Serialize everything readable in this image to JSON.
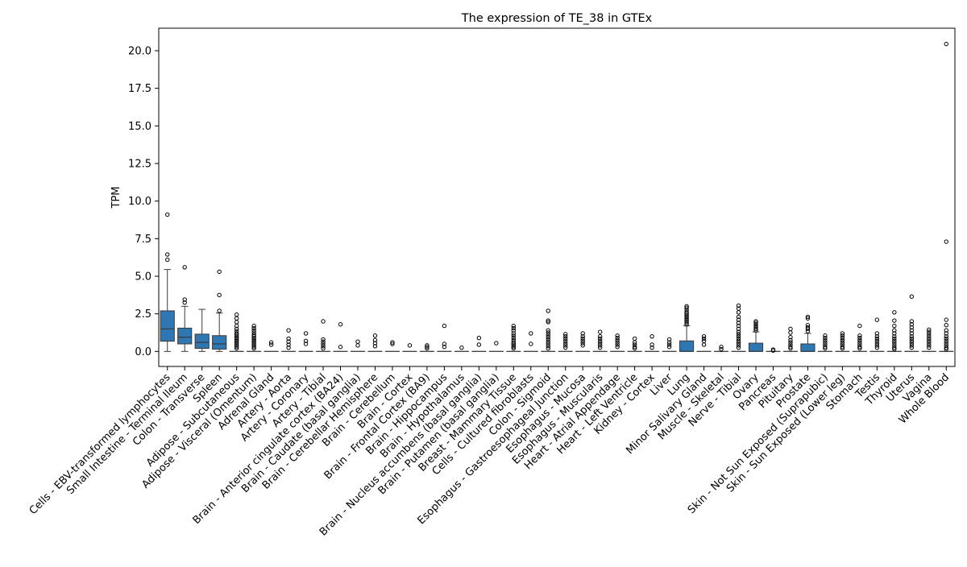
{
  "chart_data": {
    "type": "box",
    "title": "The expression of TE_38 in GTEx",
    "xlabel": "",
    "ylabel": "TPM",
    "ylim": [
      -1.0,
      21.5
    ],
    "yticks": [
      0.0,
      2.5,
      5.0,
      7.5,
      10.0,
      12.5,
      15.0,
      17.5,
      20.0
    ],
    "ytick_labels": [
      "0.0",
      "2.5",
      "5.0",
      "7.5",
      "10.0",
      "12.5",
      "15.0",
      "17.5",
      "20.0"
    ],
    "grid": false,
    "legend": "none",
    "box_color": "#2e77b3",
    "edge_color": "#3a3a3a",
    "categories": [
      {
        "name": "Cells - EBV-transformed lymphocytes",
        "q1": 0.68,
        "median": 1.5,
        "q3": 2.7,
        "wlo": 0.0,
        "whi": 5.45,
        "outliers": [
          9.1,
          6.45,
          6.1
        ]
      },
      {
        "name": "Small Intestine - Terminal Ileum",
        "q1": 0.5,
        "median": 0.95,
        "q3": 1.55,
        "wlo": 0.0,
        "whi": 3.0,
        "outliers": [
          5.6,
          3.45,
          3.25
        ]
      },
      {
        "name": "Colon - Transverse",
        "q1": 0.2,
        "median": 0.6,
        "q3": 1.15,
        "wlo": 0.0,
        "whi": 2.8,
        "outliers": []
      },
      {
        "name": "Spleen",
        "q1": 0.15,
        "median": 0.5,
        "q3": 1.05,
        "wlo": 0.0,
        "whi": 2.55,
        "outliers": [
          5.3,
          3.75,
          2.7
        ]
      },
      {
        "name": "Adipose - Subcutaneous",
        "q1": 0.0,
        "median": 0.0,
        "q3": 0.0,
        "wlo": 0.0,
        "whi": 0.0,
        "outliers": [
          2.45,
          2.2,
          1.95,
          1.7,
          1.5,
          1.35,
          1.2,
          1.1,
          1.0,
          0.9,
          0.8,
          0.7,
          0.6,
          0.5,
          0.4,
          0.3,
          0.2
        ]
      },
      {
        "name": "Adipose - Visceral (Omentum)",
        "q1": 0.0,
        "median": 0.0,
        "q3": 0.0,
        "wlo": 0.0,
        "whi": 0.0,
        "outliers": [
          1.7,
          1.55,
          1.4,
          1.25,
          1.1,
          1.0,
          0.9,
          0.8,
          0.7,
          0.6,
          0.5,
          0.4,
          0.3,
          0.2
        ]
      },
      {
        "name": "Adrenal Gland",
        "q1": 0.0,
        "median": 0.0,
        "q3": 0.0,
        "wlo": 0.0,
        "whi": 0.0,
        "outliers": [
          0.6,
          0.45
        ]
      },
      {
        "name": "Artery - Aorta",
        "q1": 0.0,
        "median": 0.0,
        "q3": 0.0,
        "wlo": 0.0,
        "whi": 0.0,
        "outliers": [
          1.4,
          0.85,
          0.65,
          0.45,
          0.25
        ]
      },
      {
        "name": "Artery - Coronary",
        "q1": 0.0,
        "median": 0.0,
        "q3": 0.0,
        "wlo": 0.0,
        "whi": 0.0,
        "outliers": [
          1.2,
          0.7,
          0.5
        ]
      },
      {
        "name": "Artery - Tibial",
        "q1": 0.0,
        "median": 0.0,
        "q3": 0.0,
        "wlo": 0.0,
        "whi": 0.0,
        "outliers": [
          2.0,
          0.8,
          0.65,
          0.5,
          0.35,
          0.2
        ]
      },
      {
        "name": "Brain - Anterior cingulate cortex (BA24)",
        "q1": 0.0,
        "median": 0.0,
        "q3": 0.0,
        "wlo": 0.0,
        "whi": 0.0,
        "outliers": [
          1.8,
          0.3
        ]
      },
      {
        "name": "Brain - Caudate (basal ganglia)",
        "q1": 0.0,
        "median": 0.0,
        "q3": 0.0,
        "wlo": 0.0,
        "whi": 0.0,
        "outliers": [
          0.65,
          0.4
        ]
      },
      {
        "name": "Brain - Cerebellar Hemisphere",
        "q1": 0.0,
        "median": 0.0,
        "q3": 0.0,
        "wlo": 0.0,
        "whi": 0.0,
        "outliers": [
          1.05,
          0.75,
          0.55,
          0.35
        ]
      },
      {
        "name": "Brain - Cerebellum",
        "q1": 0.0,
        "median": 0.0,
        "q3": 0.0,
        "wlo": 0.0,
        "whi": 0.0,
        "outliers": [
          0.6,
          0.5
        ]
      },
      {
        "name": "Brain - Cortex",
        "q1": 0.0,
        "median": 0.0,
        "q3": 0.0,
        "wlo": 0.0,
        "whi": 0.0,
        "outliers": [
          0.4
        ]
      },
      {
        "name": "Brain - Frontal Cortex (BA9)",
        "q1": 0.0,
        "median": 0.0,
        "q3": 0.0,
        "wlo": 0.0,
        "whi": 0.0,
        "outliers": [
          0.4,
          0.3,
          0.2
        ]
      },
      {
        "name": "Brain - Hippocampus",
        "q1": 0.0,
        "median": 0.0,
        "q3": 0.0,
        "wlo": 0.0,
        "whi": 0.0,
        "outliers": [
          1.7,
          0.5,
          0.3
        ]
      },
      {
        "name": "Brain - Hypothalamus",
        "q1": 0.0,
        "median": 0.0,
        "q3": 0.0,
        "wlo": 0.0,
        "whi": 0.0,
        "outliers": [
          0.25
        ]
      },
      {
        "name": "Brain - Nucleus accumbens (basal ganglia)",
        "q1": 0.0,
        "median": 0.0,
        "q3": 0.0,
        "wlo": 0.0,
        "whi": 0.0,
        "outliers": [
          0.9,
          0.45
        ]
      },
      {
        "name": "Brain - Putamen (basal ganglia)",
        "q1": 0.0,
        "median": 0.0,
        "q3": 0.0,
        "wlo": 0.0,
        "whi": 0.0,
        "outliers": [
          0.55
        ]
      },
      {
        "name": "Breast - Mammary Tissue",
        "q1": 0.0,
        "median": 0.0,
        "q3": 0.0,
        "wlo": 0.0,
        "whi": 0.0,
        "outliers": [
          1.7,
          1.55,
          1.4,
          1.2,
          1.05,
          0.9,
          0.75,
          0.6,
          0.5,
          0.4,
          0.3,
          0.2
        ]
      },
      {
        "name": "Cells - Cultured fibroblasts",
        "q1": 0.0,
        "median": 0.0,
        "q3": 0.0,
        "wlo": 0.0,
        "whi": 0.0,
        "outliers": [
          1.2,
          0.5
        ]
      },
      {
        "name": "Colon - Sigmoid",
        "q1": 0.0,
        "median": 0.0,
        "q3": 0.0,
        "wlo": 0.0,
        "whi": 0.0,
        "outliers": [
          2.7,
          2.05,
          1.95,
          1.4,
          1.25,
          1.1,
          0.95,
          0.8,
          0.65,
          0.5,
          0.35,
          0.2
        ]
      },
      {
        "name": "Esophagus - Gastroesophageal Junction",
        "q1": 0.0,
        "median": 0.0,
        "q3": 0.0,
        "wlo": 0.0,
        "whi": 0.0,
        "outliers": [
          1.15,
          1.0,
          0.85,
          0.7,
          0.55,
          0.4,
          0.25
        ]
      },
      {
        "name": "Esophagus - Mucosa",
        "q1": 0.0,
        "median": 0.0,
        "q3": 0.0,
        "wlo": 0.0,
        "whi": 0.0,
        "outliers": [
          1.2,
          1.0,
          0.85,
          0.7,
          0.55,
          0.4
        ]
      },
      {
        "name": "Esophagus - Muscularis",
        "q1": 0.0,
        "median": 0.0,
        "q3": 0.0,
        "wlo": 0.0,
        "whi": 0.0,
        "outliers": [
          1.3,
          1.0,
          0.85,
          0.7,
          0.55,
          0.4,
          0.25
        ]
      },
      {
        "name": "Heart - Atrial Appendage",
        "q1": 0.0,
        "median": 0.0,
        "q3": 0.0,
        "wlo": 0.0,
        "whi": 0.0,
        "outliers": [
          1.05,
          0.9,
          0.75,
          0.6,
          0.45,
          0.3
        ]
      },
      {
        "name": "Heart - Left Ventricle",
        "q1": 0.0,
        "median": 0.0,
        "q3": 0.0,
        "wlo": 0.0,
        "whi": 0.0,
        "outliers": [
          0.85,
          0.6,
          0.45,
          0.3,
          0.2
        ]
      },
      {
        "name": "Kidney - Cortex",
        "q1": 0.0,
        "median": 0.0,
        "q3": 0.0,
        "wlo": 0.0,
        "whi": 0.0,
        "outliers": [
          1.0,
          0.45,
          0.25
        ]
      },
      {
        "name": "Liver",
        "q1": 0.0,
        "median": 0.0,
        "q3": 0.0,
        "wlo": 0.0,
        "whi": 0.0,
        "outliers": [
          0.8,
          0.6,
          0.45,
          0.3
        ]
      },
      {
        "name": "Lung",
        "q1": 0.0,
        "median": 0.0,
        "q3": 0.7,
        "wlo": 0.0,
        "whi": 1.7,
        "outliers": [
          3.0,
          2.9,
          2.75,
          2.6,
          2.5,
          2.4,
          2.3,
          2.2,
          2.1,
          2.0,
          1.9,
          1.8
        ]
      },
      {
        "name": "Minor Salivary Gland",
        "q1": 0.0,
        "median": 0.0,
        "q3": 0.0,
        "wlo": 0.0,
        "whi": 0.0,
        "outliers": [
          1.0,
          0.85,
          0.7,
          0.45
        ]
      },
      {
        "name": "Muscle - Skeletal",
        "q1": 0.0,
        "median": 0.0,
        "q3": 0.0,
        "wlo": 0.0,
        "whi": 0.0,
        "outliers": [
          0.3,
          0.15
        ]
      },
      {
        "name": "Nerve - Tibial",
        "q1": 0.0,
        "median": 0.0,
        "q3": 0.0,
        "wlo": 0.0,
        "whi": 0.0,
        "outliers": [
          3.05,
          2.85,
          2.6,
          2.3,
          2.1,
          1.9,
          1.7,
          1.5,
          1.3,
          1.15,
          1.0,
          0.85,
          0.7,
          0.55,
          0.4,
          0.25
        ]
      },
      {
        "name": "Ovary",
        "q1": 0.0,
        "median": 0.0,
        "q3": 0.55,
        "wlo": 0.0,
        "whi": 1.3,
        "outliers": [
          2.0,
          1.9,
          1.8,
          1.7,
          1.6,
          1.5,
          1.4
        ]
      },
      {
        "name": "Pancreas",
        "q1": 0.0,
        "median": 0.0,
        "q3": 0.0,
        "wlo": 0.0,
        "whi": 0.0,
        "outliers": [
          0.12,
          0.06
        ]
      },
      {
        "name": "Pituitary",
        "q1": 0.0,
        "median": 0.0,
        "q3": 0.0,
        "wlo": 0.0,
        "whi": 0.0,
        "outliers": [
          1.5,
          1.25,
          0.95,
          0.75,
          0.6,
          0.45,
          0.3,
          0.2
        ]
      },
      {
        "name": "Prostate",
        "q1": 0.0,
        "median": 0.0,
        "q3": 0.5,
        "wlo": 0.0,
        "whi": 1.2,
        "outliers": [
          2.3,
          2.2,
          1.75,
          1.6,
          1.5,
          1.35
        ]
      },
      {
        "name": "Skin - Not Sun Exposed (Suprapubic)",
        "q1": 0.0,
        "median": 0.0,
        "q3": 0.0,
        "wlo": 0.0,
        "whi": 0.0,
        "outliers": [
          1.05,
          0.9,
          0.75,
          0.6,
          0.45,
          0.3,
          0.2
        ]
      },
      {
        "name": "Skin - Sun Exposed (Lower leg)",
        "q1": 0.0,
        "median": 0.0,
        "q3": 0.0,
        "wlo": 0.0,
        "whi": 0.0,
        "outliers": [
          1.2,
          1.05,
          0.9,
          0.75,
          0.6,
          0.45,
          0.3,
          0.2
        ]
      },
      {
        "name": "Stomach",
        "q1": 0.0,
        "median": 0.0,
        "q3": 0.0,
        "wlo": 0.0,
        "whi": 0.0,
        "outliers": [
          1.7,
          1.05,
          0.9,
          0.75,
          0.6,
          0.45,
          0.3,
          0.2
        ]
      },
      {
        "name": "Testis",
        "q1": 0.0,
        "median": 0.0,
        "q3": 0.0,
        "wlo": 0.0,
        "whi": 0.0,
        "outliers": [
          2.1,
          1.2,
          1.0,
          0.85,
          0.7,
          0.55,
          0.4,
          0.25
        ]
      },
      {
        "name": "Thyroid",
        "q1": 0.0,
        "median": 0.0,
        "q3": 0.0,
        "wlo": 0.0,
        "whi": 0.0,
        "outliers": [
          2.6,
          2.05,
          1.7,
          1.4,
          1.2,
          1.0,
          0.85,
          0.7,
          0.55,
          0.4,
          0.25,
          0.15
        ]
      },
      {
        "name": "Uterus",
        "q1": 0.0,
        "median": 0.0,
        "q3": 0.0,
        "wlo": 0.0,
        "whi": 0.0,
        "outliers": [
          3.65,
          2.0,
          1.8,
          1.6,
          1.4,
          1.2,
          1.0,
          0.85,
          0.7,
          0.55,
          0.4,
          0.25
        ]
      },
      {
        "name": "Vagina",
        "q1": 0.0,
        "median": 0.0,
        "q3": 0.0,
        "wlo": 0.0,
        "whi": 0.0,
        "outliers": [
          1.45,
          1.3,
          1.15,
          1.0,
          0.85,
          0.7,
          0.55,
          0.4,
          0.25
        ]
      },
      {
        "name": "Whole Blood",
        "q1": 0.0,
        "median": 0.0,
        "q3": 0.0,
        "wlo": 0.0,
        "whi": 0.0,
        "outliers": [
          20.45,
          7.3,
          2.1,
          1.75,
          1.4,
          1.2,
          1.0,
          0.85,
          0.7,
          0.55,
          0.4,
          0.25,
          0.15
        ]
      }
    ]
  }
}
